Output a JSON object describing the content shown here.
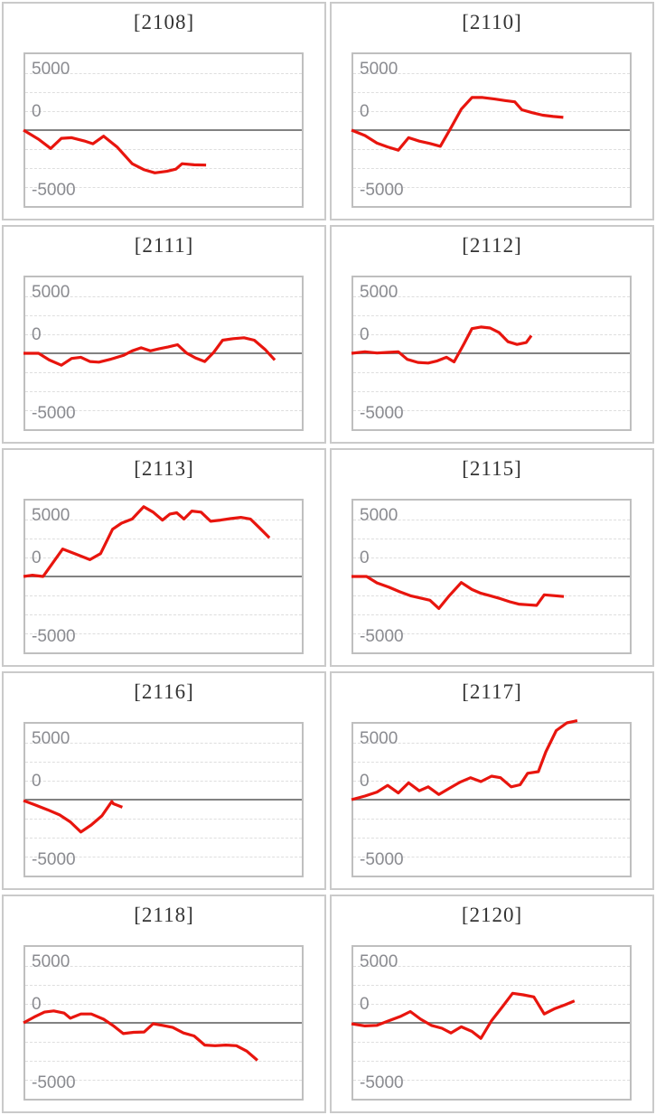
{
  "page": {
    "background": "#ffffff"
  },
  "axis": {
    "top_label": "5000",
    "zero_label": "0",
    "bottom_label": "-5000",
    "ylim": [
      -5000,
      5000
    ],
    "grid_interval": 1250,
    "grid": "dashed"
  },
  "colors": {
    "series": "#e8150e",
    "zero_line": "#828282",
    "grid_line": "#dedede",
    "plot_border": "#bfbfbf",
    "card_border": "#cacaca",
    "axis_label": "#8a8b90",
    "title": "#333333"
  },
  "chart_data": [
    {
      "type": "line",
      "title": "[2108]",
      "machine_id": "2108",
      "ylabel_ticks": [
        "5000",
        "0",
        "-5000"
      ],
      "ylim": [
        -5000,
        5000
      ],
      "points": [
        [
          0,
          0
        ],
        [
          5.4,
          -590
        ],
        [
          9.7,
          -1180
        ],
        [
          13.5,
          -530
        ],
        [
          17.2,
          -490
        ],
        [
          21.6,
          -690
        ],
        [
          24.8,
          -880
        ],
        [
          28.6,
          -390
        ],
        [
          33.4,
          -1080
        ],
        [
          38.8,
          -2160
        ],
        [
          43.1,
          -2550
        ],
        [
          46.9,
          -2750
        ],
        [
          51.2,
          -2650
        ],
        [
          54.4,
          -2510
        ],
        [
          56.6,
          -2160
        ],
        [
          60.9,
          -2230
        ],
        [
          65.2,
          -2250
        ]
      ]
    },
    {
      "type": "line",
      "title": "[2110]",
      "machine_id": "2110",
      "ylabel_ticks": [
        "5000",
        "0",
        "-5000"
      ],
      "ylim": [
        -5000,
        5000
      ],
      "points": [
        [
          0,
          0
        ],
        [
          4.8,
          -350
        ],
        [
          9.1,
          -840
        ],
        [
          12.9,
          -1080
        ],
        [
          16.7,
          -1290
        ],
        [
          20.4,
          -490
        ],
        [
          24.2,
          -710
        ],
        [
          28,
          -860
        ],
        [
          31.7,
          -1040
        ],
        [
          35.5,
          140
        ],
        [
          39.2,
          1350
        ],
        [
          43,
          2100
        ],
        [
          46.8,
          2100
        ],
        [
          51.1,
          2000
        ],
        [
          54.8,
          1900
        ],
        [
          58.3,
          1820
        ],
        [
          60.8,
          1310
        ],
        [
          64.5,
          1120
        ],
        [
          68.3,
          960
        ],
        [
          72,
          880
        ],
        [
          75.6,
          820
        ]
      ]
    },
    {
      "type": "line",
      "title": "[2111]",
      "machine_id": "2111",
      "ylabel_ticks": [
        "5000",
        "0",
        "-5000"
      ],
      "ylim": [
        -5000,
        5000
      ],
      "points": [
        [
          0,
          0
        ],
        [
          5.4,
          0
        ],
        [
          9.2,
          -430
        ],
        [
          13.5,
          -765
        ],
        [
          17.2,
          -330
        ],
        [
          20.5,
          -255
        ],
        [
          23.7,
          -530
        ],
        [
          26.9,
          -570
        ],
        [
          31.3,
          -370
        ],
        [
          35.6,
          -140
        ],
        [
          38.8,
          155
        ],
        [
          42,
          355
        ],
        [
          45.3,
          155
        ],
        [
          48.5,
          295
        ],
        [
          51.7,
          410
        ],
        [
          55,
          550
        ],
        [
          58.2,
          20
        ],
        [
          61.4,
          -295
        ],
        [
          64.7,
          -530
        ],
        [
          67.9,
          60
        ],
        [
          71.1,
          845
        ],
        [
          74.9,
          940
        ],
        [
          78.7,
          1000
        ],
        [
          82.4,
          845
        ],
        [
          86.2,
          255
        ],
        [
          89.7,
          -430
        ]
      ]
    },
    {
      "type": "line",
      "title": "[2112]",
      "machine_id": "2112",
      "ylabel_ticks": [
        "5000",
        "0",
        "-5000"
      ],
      "ylim": [
        -5000,
        5000
      ],
      "points": [
        [
          0,
          0
        ],
        [
          4.8,
          100
        ],
        [
          9.1,
          20
        ],
        [
          12.9,
          60
        ],
        [
          16.7,
          100
        ],
        [
          19.9,
          -390
        ],
        [
          23.7,
          -590
        ],
        [
          27.4,
          -630
        ],
        [
          30.6,
          -490
        ],
        [
          33.9,
          -255
        ],
        [
          36.6,
          -550
        ],
        [
          40.3,
          650
        ],
        [
          43,
          1590
        ],
        [
          46.2,
          1690
        ],
        [
          49.5,
          1630
        ],
        [
          52.7,
          1330
        ],
        [
          55.9,
          745
        ],
        [
          59.1,
          570
        ],
        [
          62.4,
          690
        ],
        [
          64.2,
          1140
        ]
      ]
    },
    {
      "type": "line",
      "title": "[2113]",
      "machine_id": "2113",
      "ylabel_ticks": [
        "5000",
        "0",
        "-5000"
      ],
      "ylim": [
        -5000,
        5000
      ],
      "points": [
        [
          0,
          0
        ],
        [
          3.2,
          80
        ],
        [
          7,
          0
        ],
        [
          14,
          1765
        ],
        [
          18.3,
          1470
        ],
        [
          23.7,
          1080
        ],
        [
          27.5,
          1470
        ],
        [
          31.8,
          3040
        ],
        [
          35,
          3430
        ],
        [
          38.8,
          3700
        ],
        [
          42.9,
          4490
        ],
        [
          46.3,
          4140
        ],
        [
          49.6,
          3630
        ],
        [
          52.3,
          4020
        ],
        [
          54.7,
          4100
        ],
        [
          57.3,
          3700
        ],
        [
          60.1,
          4210
        ],
        [
          63.4,
          4140
        ],
        [
          66.8,
          3550
        ],
        [
          70.4,
          3630
        ],
        [
          73.8,
          3720
        ],
        [
          77.6,
          3800
        ],
        [
          81,
          3700
        ],
        [
          84.3,
          3120
        ],
        [
          87.8,
          2490
        ]
      ]
    },
    {
      "type": "line",
      "title": "[2115]",
      "machine_id": "2115",
      "ylabel_ticks": [
        "5000",
        "0",
        "-5000"
      ],
      "ylim": [
        -5000,
        5000
      ],
      "points": [
        [
          0,
          0
        ],
        [
          5.4,
          0
        ],
        [
          9.1,
          -410
        ],
        [
          13.4,
          -690
        ],
        [
          17.2,
          -980
        ],
        [
          21,
          -1240
        ],
        [
          24.7,
          -1390
        ],
        [
          28,
          -1530
        ],
        [
          31.2,
          -2060
        ],
        [
          34.9,
          -1240
        ],
        [
          39.2,
          -390
        ],
        [
          43,
          -840
        ],
        [
          46.2,
          -1080
        ],
        [
          49.5,
          -1240
        ],
        [
          53.2,
          -1430
        ],
        [
          56.5,
          -1630
        ],
        [
          59.7,
          -1780
        ],
        [
          62.9,
          -1820
        ],
        [
          66.1,
          -1860
        ],
        [
          68.8,
          -1180
        ],
        [
          72.6,
          -1240
        ],
        [
          75.8,
          -1290
        ]
      ]
    },
    {
      "type": "line",
      "title": "[2116]",
      "machine_id": "2116",
      "ylabel_ticks": [
        "5000",
        "0",
        "-5000"
      ],
      "ylim": [
        -5000,
        5000
      ],
      "points": [
        [
          0,
          -60
        ],
        [
          4.3,
          -350
        ],
        [
          8.6,
          -650
        ],
        [
          12.9,
          -980
        ],
        [
          16.7,
          -1430
        ],
        [
          20.5,
          -2080
        ],
        [
          24.2,
          -1630
        ],
        [
          28,
          -1040
        ],
        [
          31.5,
          -120
        ],
        [
          32.1,
          -260
        ],
        [
          35.3,
          -490
        ]
      ]
    },
    {
      "type": "line",
      "title": "[2117]",
      "machine_id": "2117",
      "ylabel_ticks": [
        "5000",
        "0",
        "-5000"
      ],
      "ylim": [
        -5000,
        5000
      ],
      "points": [
        [
          0,
          0
        ],
        [
          4.8,
          235
        ],
        [
          9.1,
          490
        ],
        [
          12.9,
          920
        ],
        [
          16.7,
          430
        ],
        [
          20.4,
          1080
        ],
        [
          24.2,
          570
        ],
        [
          27.4,
          825
        ],
        [
          31.2,
          330
        ],
        [
          34.9,
          725
        ],
        [
          38.7,
          1120
        ],
        [
          42.5,
          1410
        ],
        [
          46.2,
          1160
        ],
        [
          50,
          1510
        ],
        [
          53.2,
          1410
        ],
        [
          57,
          825
        ],
        [
          60.2,
          960
        ],
        [
          62.9,
          1700
        ],
        [
          66.7,
          1800
        ],
        [
          69.4,
          3080
        ],
        [
          73.1,
          4450
        ],
        [
          76.9,
          4940
        ],
        [
          80.6,
          5080
        ]
      ]
    },
    {
      "type": "line",
      "title": "[2118]",
      "machine_id": "2118",
      "ylabel_ticks": [
        "5000",
        "0",
        "-5000"
      ],
      "ylim": [
        -5000,
        5000
      ],
      "points": [
        [
          0,
          0
        ],
        [
          3.8,
          370
        ],
        [
          7.5,
          690
        ],
        [
          10.8,
          765
        ],
        [
          14.5,
          630
        ],
        [
          16.7,
          295
        ],
        [
          20.5,
          570
        ],
        [
          24.2,
          570
        ],
        [
          28.6,
          235
        ],
        [
          32.3,
          -215
        ],
        [
          35.6,
          -690
        ],
        [
          39.3,
          -610
        ],
        [
          43.1,
          -590
        ],
        [
          46.3,
          -60
        ],
        [
          49.6,
          -160
        ],
        [
          53.3,
          -295
        ],
        [
          57.1,
          -650
        ],
        [
          60.9,
          -845
        ],
        [
          64.7,
          -1430
        ],
        [
          68.4,
          -1470
        ],
        [
          72.2,
          -1430
        ],
        [
          76,
          -1470
        ],
        [
          79.7,
          -1820
        ],
        [
          83.5,
          -2410
        ]
      ]
    },
    {
      "type": "line",
      "title": "[2120]",
      "machine_id": "2120",
      "ylabel_ticks": [
        "5000",
        "0",
        "-5000"
      ],
      "ylim": [
        -5000,
        5000
      ],
      "points": [
        [
          0,
          -60
        ],
        [
          4.8,
          -200
        ],
        [
          9.1,
          -160
        ],
        [
          13.4,
          140
        ],
        [
          17.7,
          430
        ],
        [
          21,
          725
        ],
        [
          24.7,
          235
        ],
        [
          28.5,
          -160
        ],
        [
          32.3,
          -350
        ],
        [
          35.5,
          -650
        ],
        [
          39.2,
          -255
        ],
        [
          43,
          -550
        ],
        [
          46.2,
          -1000
        ],
        [
          50,
          140
        ],
        [
          53.8,
          1020
        ],
        [
          57.5,
          1900
        ],
        [
          61.3,
          1800
        ],
        [
          65.1,
          1670
        ],
        [
          68.8,
          570
        ],
        [
          72.6,
          920
        ],
        [
          76.3,
          1160
        ],
        [
          79.6,
          1410
        ]
      ]
    }
  ]
}
